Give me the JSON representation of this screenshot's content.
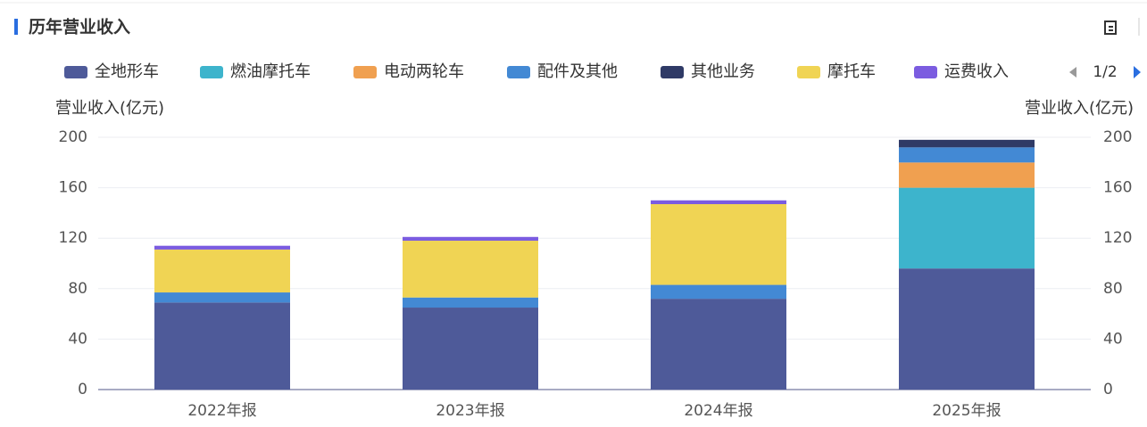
{
  "chart_data": {
    "type": "stacked_bar",
    "title": "历年营业收入",
    "ylabel": "营业收入(亿元)",
    "y2label": "营业收入(亿元)",
    "legend_page": "1/2",
    "categories": [
      "2022年报",
      "2023年报",
      "2024年报",
      "2025年报"
    ],
    "series": [
      {
        "name": "全地形车",
        "color": "#4e5a99",
        "values": [
          69,
          65,
          72,
          96
        ]
      },
      {
        "name": "燃油摩托车",
        "color": "#3db4cc",
        "values": [
          null,
          null,
          null,
          64
        ]
      },
      {
        "name": "电动两轮车",
        "color": "#f0a050",
        "values": [
          null,
          null,
          null,
          20
        ]
      },
      {
        "name": "配件及其他",
        "color": "#4389d4",
        "values": [
          8,
          8,
          11,
          12
        ]
      },
      {
        "name": "其他业务",
        "color": "#2f3a66",
        "values": [
          null,
          null,
          null,
          6
        ]
      },
      {
        "name": "摩托车",
        "color": "#f0d454",
        "values": [
          34,
          45,
          64,
          null
        ]
      },
      {
        "name": "运费收入",
        "color": "#7b5ce0",
        "values": [
          3,
          3,
          3,
          null
        ]
      }
    ],
    "ylim": [
      0,
      200
    ],
    "yticks": [
      0,
      40,
      80,
      120,
      160,
      200
    ],
    "y2lim": [
      0,
      200
    ],
    "y2ticks": [
      0,
      40,
      80,
      120,
      160,
      200
    ],
    "grid": true
  }
}
